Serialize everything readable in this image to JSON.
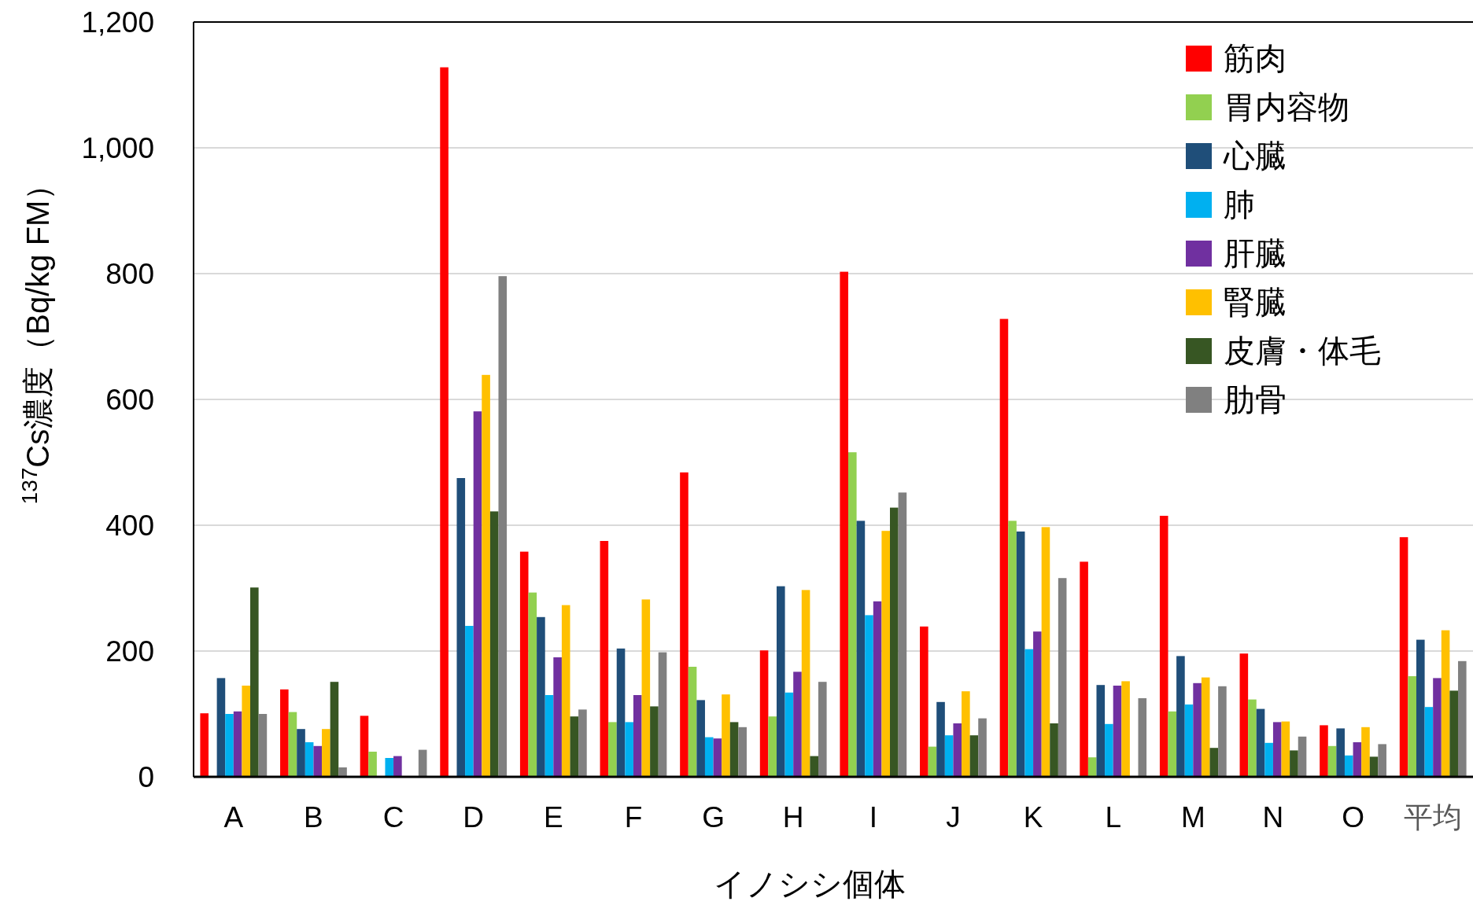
{
  "chart_data": {
    "type": "bar",
    "xlabel": "イノシシ個体",
    "ylabel": "$^{137}$Cs濃度（Bq/kg FM）",
    "categories": [
      "A",
      "B",
      "C",
      "D",
      "E",
      "F",
      "G",
      "H",
      "I",
      "J",
      "K",
      "L",
      "M",
      "N",
      "O",
      "平均"
    ],
    "series": [
      {
        "name": "筋肉",
        "color": "#ff0000",
        "values": [
          101,
          139,
          97,
          1128,
          358,
          375,
          484,
          201,
          803,
          239,
          728,
          342,
          415,
          196,
          82,
          381
        ]
      },
      {
        "name": "胃内容物",
        "color": "#92d050",
        "values": [
          null,
          103,
          40,
          null,
          293,
          87,
          175,
          96,
          516,
          48,
          407,
          31,
          104,
          123,
          49,
          160
        ]
      },
      {
        "name": "心臓",
        "color": "#1f4e79",
        "values": [
          157,
          76,
          null,
          475,
          254,
          204,
          122,
          303,
          407,
          119,
          390,
          146,
          192,
          108,
          77,
          218
        ]
      },
      {
        "name": "肺",
        "color": "#00b0f0",
        "values": [
          100,
          55,
          30,
          240,
          130,
          87,
          63,
          134,
          257,
          66,
          203,
          84,
          115,
          54,
          34,
          111
        ]
      },
      {
        "name": "肝臓",
        "color": "#7030a0",
        "values": [
          104,
          49,
          33,
          581,
          190,
          130,
          61,
          167,
          279,
          85,
          231,
          145,
          149,
          87,
          55,
          157
        ]
      },
      {
        "name": "腎臓",
        "color": "#ffc000",
        "values": [
          145,
          76,
          null,
          639,
          273,
          282,
          131,
          297,
          391,
          136,
          397,
          152,
          158,
          88,
          79,
          233
        ]
      },
      {
        "name": "皮膚・体毛",
        "color": "#375623",
        "values": [
          301,
          151,
          null,
          422,
          96,
          112,
          87,
          33,
          428,
          66,
          85,
          null,
          46,
          42,
          32,
          137
        ]
      },
      {
        "name": "肋骨",
        "color": "#808080",
        "values": [
          100,
          15,
          43,
          796,
          107,
          198,
          79,
          151,
          452,
          93,
          316,
          125,
          144,
          64,
          52,
          184
        ]
      }
    ],
    "ylim": [
      0,
      1200
    ],
    "yticks": [
      {
        "value": 0,
        "label": "0"
      },
      {
        "value": 200,
        "label": "200"
      },
      {
        "value": 400,
        "label": "400"
      },
      {
        "value": 600,
        "label": "600"
      },
      {
        "value": 800,
        "label": "800"
      },
      {
        "value": 1000,
        "label": "1,000"
      },
      {
        "value": 1200,
        "label": "1,200"
      }
    ],
    "grid": "y",
    "legend": "top right"
  }
}
